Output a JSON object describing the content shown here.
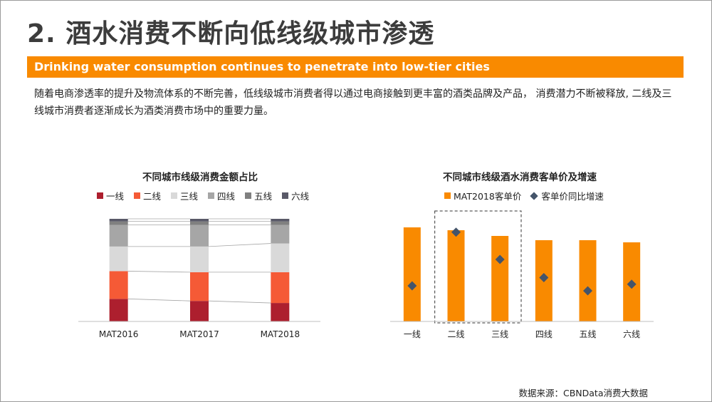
{
  "page": {
    "title": "2. 酒水消费不断向低线级城市渗透",
    "banner": "Drinking water consumption continues to penetrate into low-tier cities",
    "description": "随着电商渗透率的提升及物流体系的不断完善，低线级城市消费者得以通过电商接触到更丰富的酒类品牌及产品， 消费潜力不断被释放, 二线及三线城市消费者逐渐成长为酒类消费市场中的重要力量。",
    "source": "数据来源：CBNData消费大数据"
  },
  "chart_data": [
    {
      "type": "bar",
      "stacked": true,
      "title": "不同城市线级消费金额占比",
      "categories": [
        "MAT2016",
        "MAT2017",
        "MAT2018"
      ],
      "series": [
        {
          "name": "一线",
          "color": "#ad1f2e",
          "values": [
            0.22,
            0.2,
            0.18
          ]
        },
        {
          "name": "二线",
          "color": "#f55a36",
          "values": [
            0.27,
            0.28,
            0.3
          ]
        },
        {
          "name": "三线",
          "color": "#d9d9d9",
          "values": [
            0.24,
            0.25,
            0.28
          ]
        },
        {
          "name": "四线",
          "color": "#a6a6a6",
          "values": [
            0.21,
            0.21,
            0.18
          ]
        },
        {
          "name": "五线",
          "color": "#808080",
          "values": [
            0.035,
            0.035,
            0.035
          ]
        },
        {
          "name": "六线",
          "color": "#595968",
          "values": [
            0.025,
            0.025,
            0.025
          ]
        }
      ],
      "ylim": [
        0,
        1
      ],
      "legend_position": "top",
      "connector_lines": true
    },
    {
      "type": "bar",
      "title": "不同城市线级酒水消费客单价及增速",
      "categories": [
        "一线",
        "二线",
        "三线",
        "四线",
        "五线",
        "六线"
      ],
      "series": [
        {
          "name": "MAT2018客单价",
          "kind": "bar",
          "color": "#f98a00",
          "values": [
            132,
            128,
            120,
            114,
            114,
            111
          ]
        },
        {
          "name": "客单价同比增速",
          "kind": "marker",
          "color": "#44546a",
          "values": [
            0.25,
            0.9,
            0.57,
            0.35,
            0.19,
            0.27
          ]
        }
      ],
      "legend_position": "top",
      "highlight_categories": [
        "二线",
        "三线"
      ],
      "highlight_style": "dashed-box"
    }
  ]
}
